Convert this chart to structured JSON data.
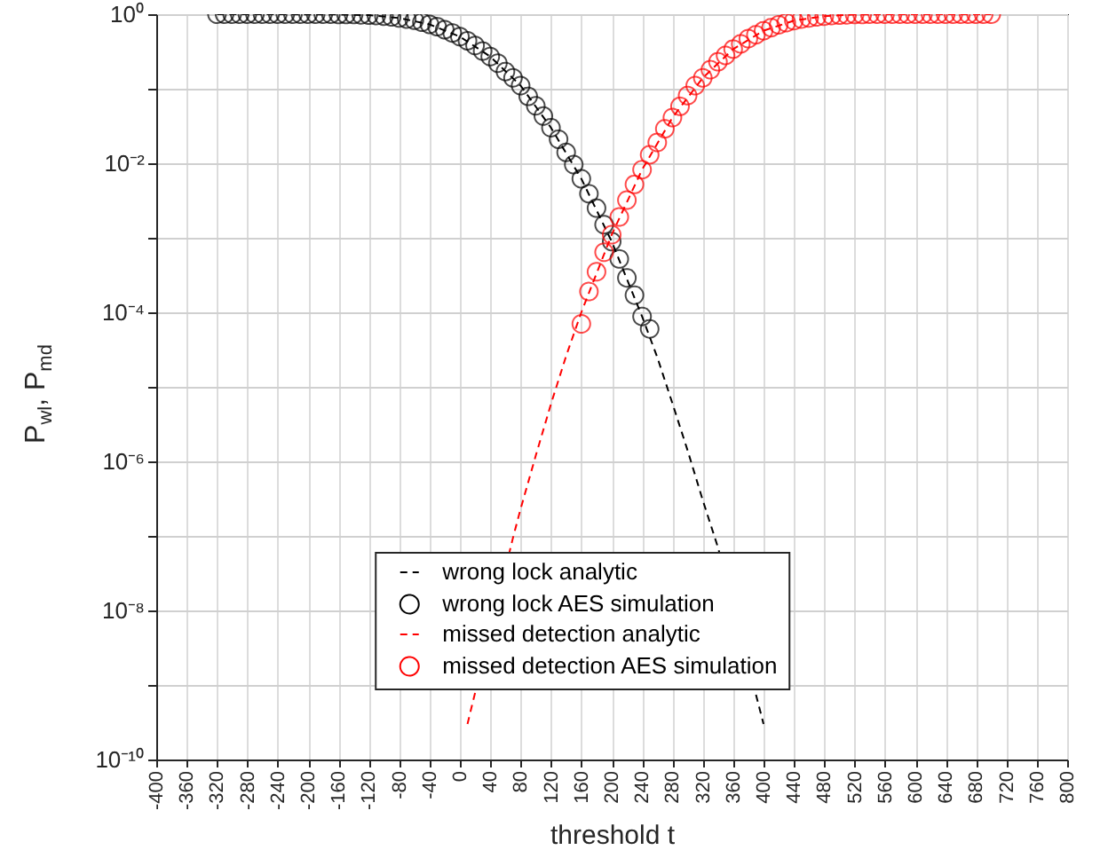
{
  "chart_data": {
    "type": "line",
    "xlabel": "threshold t",
    "ylabel": "P$_{wl}$, P$_{md}$",
    "xlim": [
      -400,
      800
    ],
    "xticks": [
      -400,
      -360,
      -320,
      -280,
      -240,
      -200,
      -160,
      -120,
      -80,
      -40,
      0,
      40,
      80,
      120,
      160,
      200,
      240,
      280,
      320,
      360,
      400,
      440,
      480,
      520,
      560,
      600,
      640,
      680,
      720,
      760,
      800
    ],
    "ylim": [
      1e-10,
      1
    ],
    "log": "y",
    "grid": true,
    "legend": "bottom",
    "yticks": [
      {
        "value": 1e-10,
        "label": "10⁻¹⁰"
      },
      {
        "value": 1e-09,
        "label": null
      },
      {
        "value": 1e-08,
        "label": "10⁻⁸"
      },
      {
        "value": 1e-07,
        "label": null
      },
      {
        "value": 1e-06,
        "label": "10⁻⁶"
      },
      {
        "value": 1e-05,
        "label": null
      },
      {
        "value": 0.0001,
        "label": "10⁻⁴"
      },
      {
        "value": 0.001,
        "label": null
      },
      {
        "value": 0.01,
        "label": "10⁻²"
      },
      {
        "value": 0.1,
        "label": null
      },
      {
        "value": 1,
        "label": "10⁰"
      }
    ],
    "series": [
      {
        "name": "wrong lock analytic",
        "line_style": "dashed",
        "color": "#000000",
        "x": [
          -320,
          -240,
          -160,
          -120,
          -80,
          -40,
          0,
          40,
          80,
          120,
          160,
          200,
          240,
          260,
          280,
          300,
          320,
          340,
          400
        ],
        "values": [
          1,
          1,
          0.99,
          0.97,
          0.89,
          0.73,
          0.5,
          0.27,
          0.11,
          0.03,
          0.0062,
          0.00089,
          8.8e-05,
          2.5e-05,
          6e-06,
          1.4e-06,
          3e-07,
          7e-08,
          3e-10
        ]
      },
      {
        "name": "wrong lock AES simulation",
        "type": "scatter",
        "marker": "circle",
        "color": "#000000",
        "x": [
          -320,
          -310,
          -300,
          -290,
          -280,
          -270,
          -260,
          -250,
          -240,
          -230,
          -220,
          -210,
          -200,
          -190,
          -180,
          -170,
          -160,
          -150,
          -140,
          -130,
          -120,
          -110,
          -100,
          -90,
          -80,
          -70,
          -60,
          -50,
          -40,
          -30,
          -20,
          -10,
          0,
          10,
          20,
          30,
          40,
          50,
          60,
          70,
          80,
          90,
          100,
          110,
          120,
          130,
          140,
          150,
          160,
          170,
          180,
          190,
          200,
          210,
          220,
          230,
          240,
          250
        ],
        "values": [
          1,
          1,
          1,
          1,
          1,
          1,
          1,
          1,
          1,
          1,
          1,
          1,
          1,
          1,
          1,
          1,
          0.99,
          0.99,
          0.99,
          0.98,
          0.97,
          0.96,
          0.94,
          0.92,
          0.89,
          0.86,
          0.83,
          0.78,
          0.73,
          0.68,
          0.62,
          0.56,
          0.5,
          0.44,
          0.38,
          0.32,
          0.27,
          0.22,
          0.17,
          0.14,
          0.11,
          0.079,
          0.059,
          0.043,
          0.03,
          0.021,
          0.014,
          0.0096,
          0.0062,
          0.0039,
          0.0025,
          0.0015,
          0.00089,
          0.00052,
          0.00029,
          0.00017,
          8.8e-05,
          6e-05
        ]
      },
      {
        "name": "missed detection analytic",
        "line_style": "dashed",
        "color": "#ff0000",
        "x": [
          10,
          70,
          80,
          100,
          120,
          140,
          160,
          200,
          240,
          280,
          320,
          360,
          400,
          440,
          480,
          520,
          560,
          600,
          700
        ],
        "values": [
          3e-10,
          9.5e-08,
          2.3e-07,
          1.2e-06,
          5.9e-06,
          2.6e-05,
          0.0001,
          0.0011,
          0.0082,
          0.041,
          0.14,
          0.34,
          0.6,
          0.82,
          0.94,
          0.99,
          1,
          1,
          1
        ]
      },
      {
        "name": "missed detection AES simulation",
        "type": "scatter",
        "marker": "circle",
        "color": "#ff0000",
        "x": [
          160,
          170,
          180,
          190,
          200,
          210,
          220,
          230,
          240,
          250,
          260,
          270,
          280,
          290,
          300,
          310,
          320,
          330,
          340,
          350,
          360,
          370,
          380,
          390,
          400,
          410,
          420,
          430,
          440,
          450,
          460,
          470,
          480,
          490,
          500,
          510,
          520,
          530,
          540,
          550,
          560,
          570,
          580,
          590,
          600,
          610,
          620,
          630,
          640,
          650,
          660,
          670,
          680,
          690,
          700
        ],
        "values": [
          7e-05,
          0.00019,
          0.00035,
          0.00064,
          0.0011,
          0.0019,
          0.0032,
          0.0052,
          0.0082,
          0.013,
          0.019,
          0.029,
          0.041,
          0.058,
          0.081,
          0.11,
          0.14,
          0.18,
          0.23,
          0.28,
          0.34,
          0.4,
          0.47,
          0.53,
          0.6,
          0.66,
          0.72,
          0.77,
          0.82,
          0.86,
          0.89,
          0.92,
          0.94,
          0.96,
          0.97,
          0.98,
          0.99,
          0.99,
          1,
          1,
          1,
          1,
          1,
          1,
          1,
          1,
          1,
          1,
          1,
          1,
          1,
          1,
          1,
          1,
          1
        ]
      }
    ]
  }
}
